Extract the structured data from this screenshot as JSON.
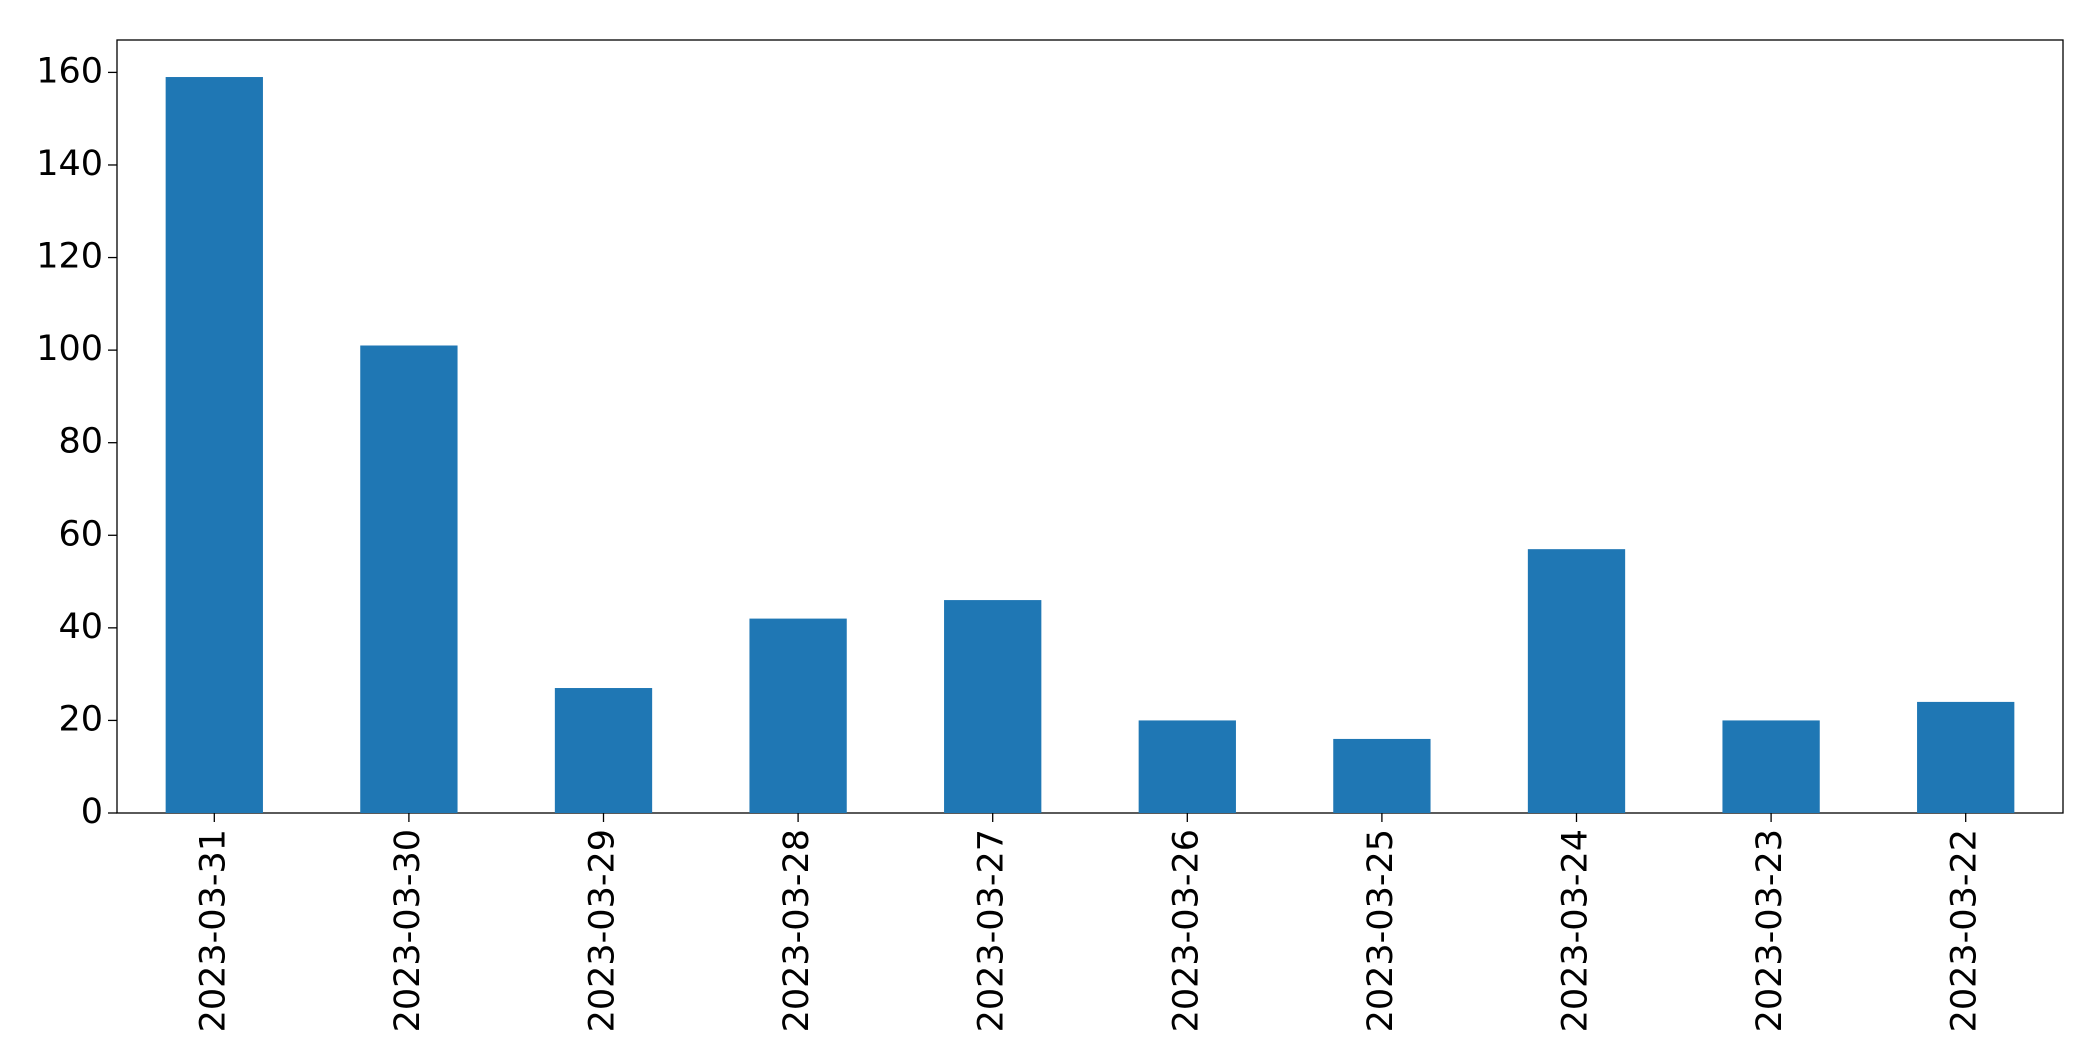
{
  "chart_data": {
    "type": "bar",
    "categories": [
      "2023-03-31",
      "2023-03-30",
      "2023-03-29",
      "2023-03-28",
      "2023-03-27",
      "2023-03-26",
      "2023-03-25",
      "2023-03-24",
      "2023-03-23",
      "2023-03-22"
    ],
    "values": [
      159,
      101,
      27,
      42,
      46,
      20,
      16,
      57,
      20,
      24
    ],
    "color": "#1f77b4",
    "ylim": [
      0,
      167
    ],
    "yticks": [
      0,
      20,
      40,
      60,
      80,
      100,
      120,
      140,
      160
    ]
  }
}
